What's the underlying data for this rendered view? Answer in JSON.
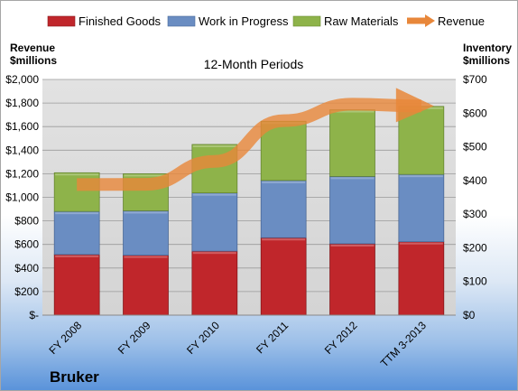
{
  "chart_data": {
    "type": "bar",
    "stacked": true,
    "company": "Bruker",
    "title": "12-Month Periods",
    "ylabel_left": [
      "Revenue",
      "$millions"
    ],
    "ylabel_right": [
      "Inventory",
      "$millions"
    ],
    "categories": [
      "FY 2008",
      "FY 2009",
      "FY 2010",
      "FY 2011",
      "FY 2012",
      "TTM 3-2013"
    ],
    "left_axis": {
      "min": 0,
      "max": 2000,
      "step": 200,
      "tick_labels": [
        "$-",
        "$200",
        "$400",
        "$600",
        "$800",
        "$1,000",
        "$1,200",
        "$1,400",
        "$1,600",
        "$1,800",
        "$2,000"
      ]
    },
    "right_axis": {
      "min": 0,
      "max": 700,
      "step": 100,
      "tick_labels": [
        "$0",
        "$100",
        "$200",
        "$300",
        "$400",
        "$500",
        "$600",
        "$700"
      ]
    },
    "series": [
      {
        "name": "Finished Goods",
        "axis": "right",
        "color": "#c0262b",
        "values": [
          180,
          178,
          190,
          230,
          212,
          218
        ]
      },
      {
        "name": "Work in Progress",
        "axis": "right",
        "color": "#6a8dc2",
        "values": [
          128,
          132,
          173,
          170,
          200,
          200
        ]
      },
      {
        "name": "Raw Materials",
        "axis": "right",
        "color": "#8eb34a",
        "values": [
          115,
          110,
          144,
          176,
          198,
          202
        ]
      },
      {
        "name": "Revenue",
        "axis": "left",
        "type": "line",
        "color": "#e8873a",
        "values": [
          1108,
          1110,
          1305,
          1650,
          1790,
          1775
        ]
      }
    ],
    "legend_position": "top",
    "grid": true
  }
}
